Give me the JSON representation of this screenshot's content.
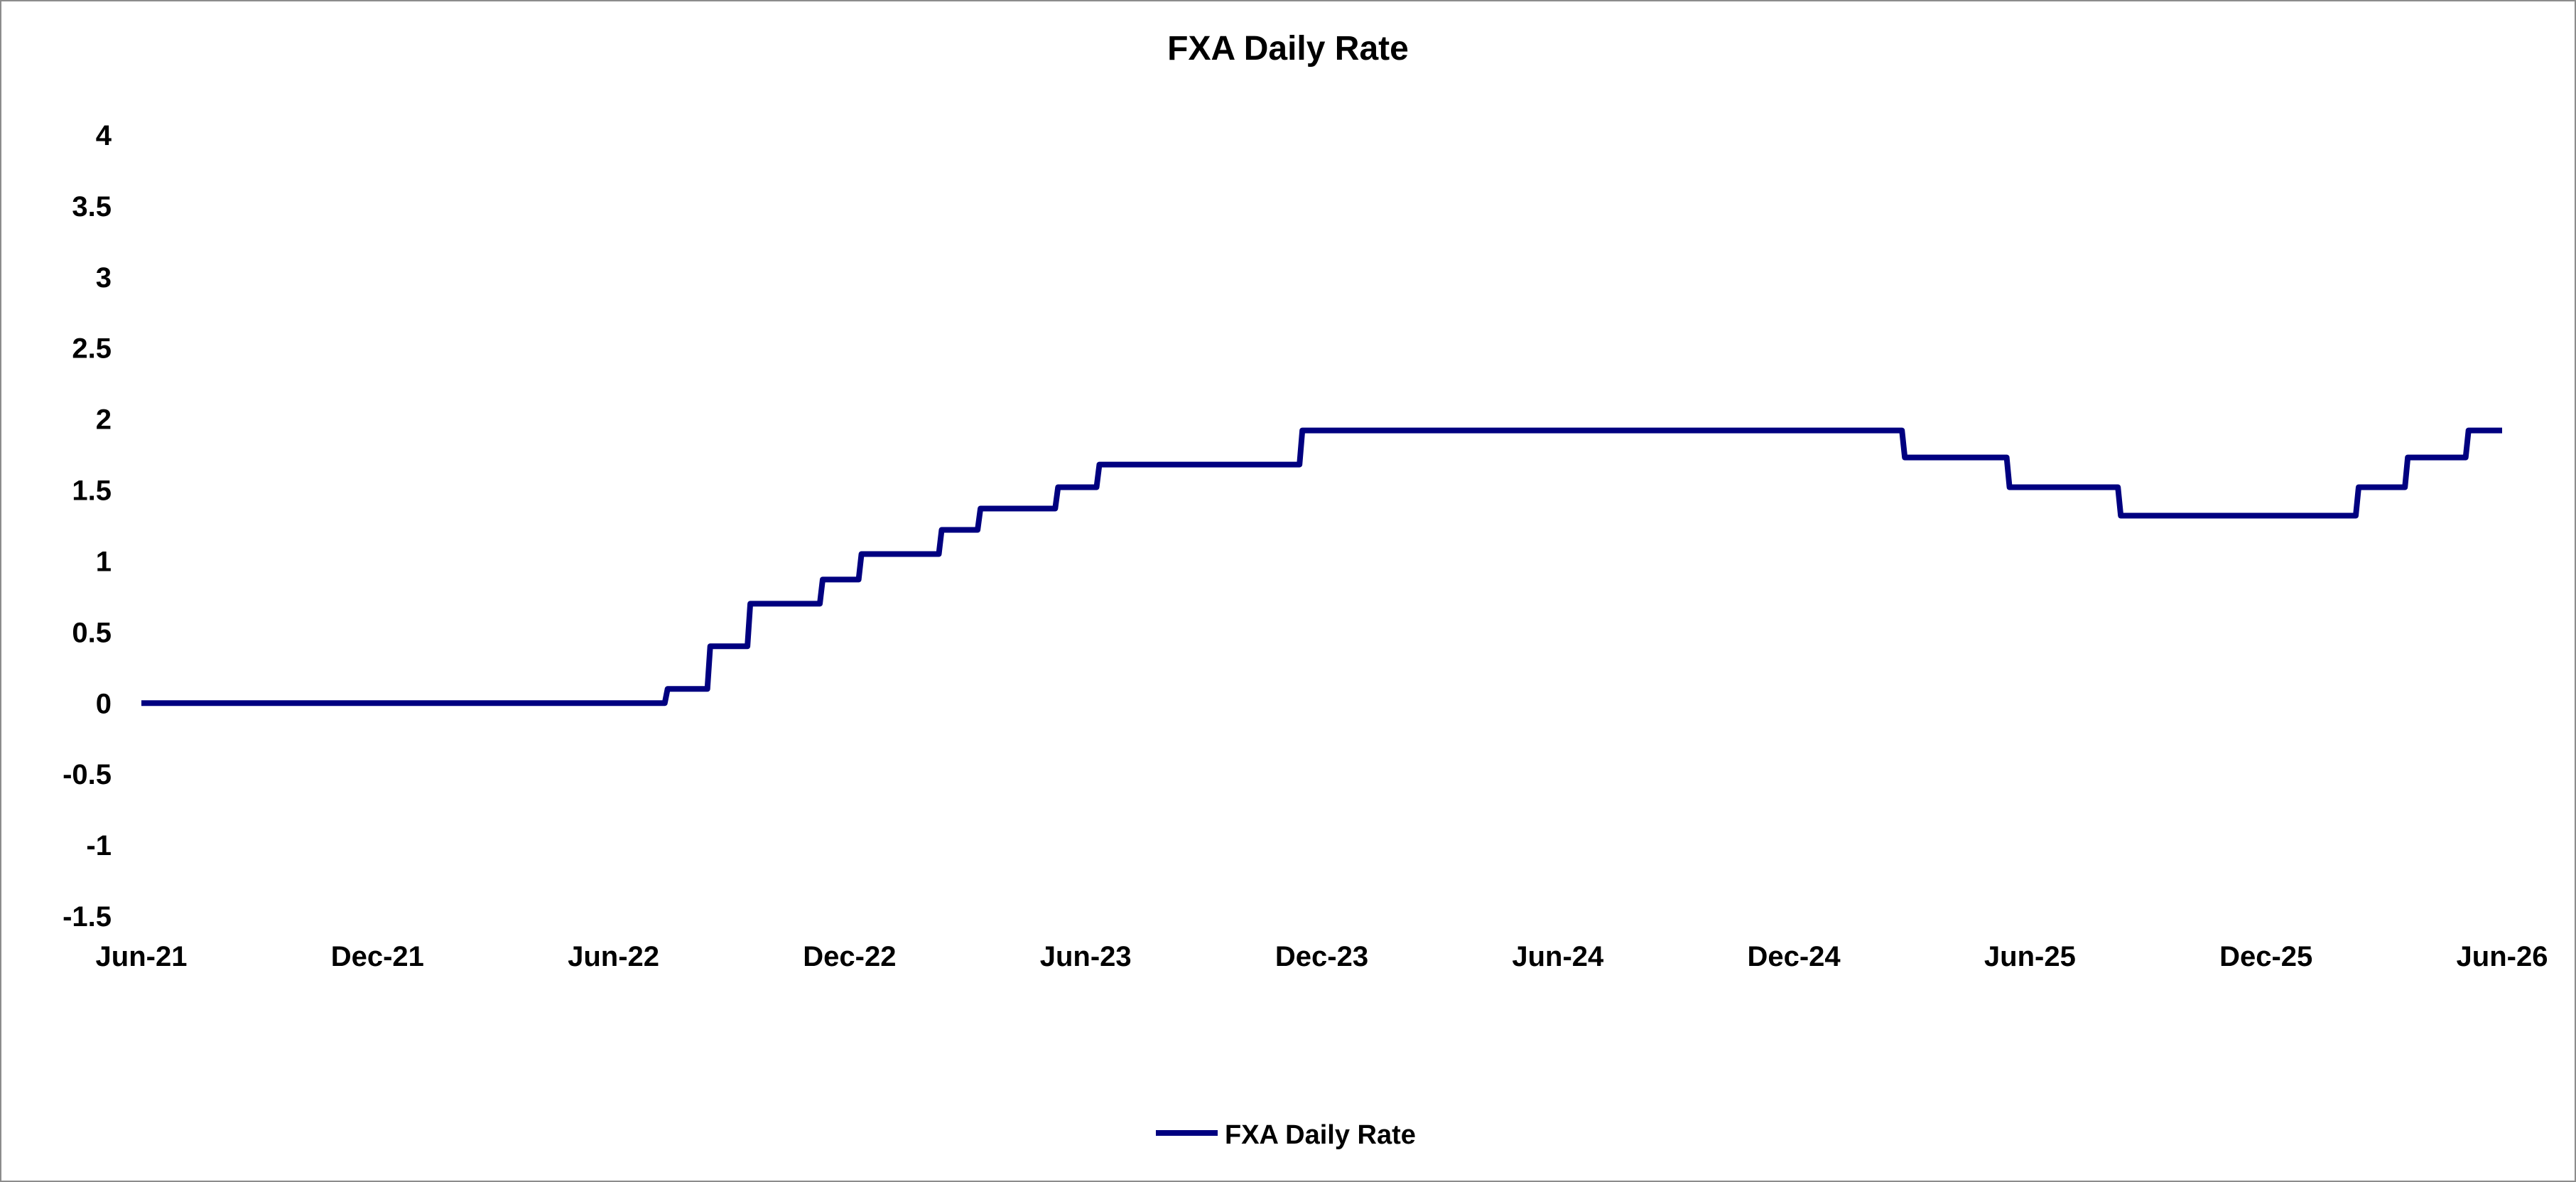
{
  "chart_data": {
    "type": "line",
    "title": "FXA Daily Rate",
    "xlabel": "",
    "ylabel": "",
    "x_ticks": [
      "Jun-21",
      "Dec-21",
      "Jun-22",
      "Dec-22",
      "Jun-23",
      "Dec-23",
      "Jun-24",
      "Dec-24",
      "Jun-25",
      "Dec-25",
      "Jun-26"
    ],
    "y_ticks": [
      "4",
      "3.5",
      "3",
      "2.5",
      "2",
      "1.5",
      "1",
      "0.5",
      "0",
      "-0.5",
      "-1",
      "-1.5"
    ],
    "ylim": [
      -1.5,
      4
    ],
    "xlim": [
      "2021-06-01",
      "2026-06-01"
    ],
    "grid": false,
    "legend_position": "bottom",
    "series": [
      {
        "name": "FXA Daily Rate",
        "color": "#000080",
        "x": [
          "2021-06-01",
          "2022-07-13",
          "2022-08-15",
          "2022-09-15",
          "2022-11-10",
          "2022-12-10",
          "2023-02-10",
          "2023-03-12",
          "2023-05-11",
          "2023-06-12",
          "2023-11-16",
          "2025-02-24",
          "2025-05-16",
          "2025-08-10",
          "2026-02-10",
          "2026-03-20",
          "2026-05-06",
          "2026-06-01"
        ],
        "values": [
          0,
          0.1,
          0.4,
          0.7,
          0.87,
          1.05,
          1.22,
          1.37,
          1.52,
          1.68,
          1.92,
          1.73,
          1.52,
          1.32,
          1.52,
          1.73,
          1.92,
          1.92
        ]
      }
    ]
  }
}
